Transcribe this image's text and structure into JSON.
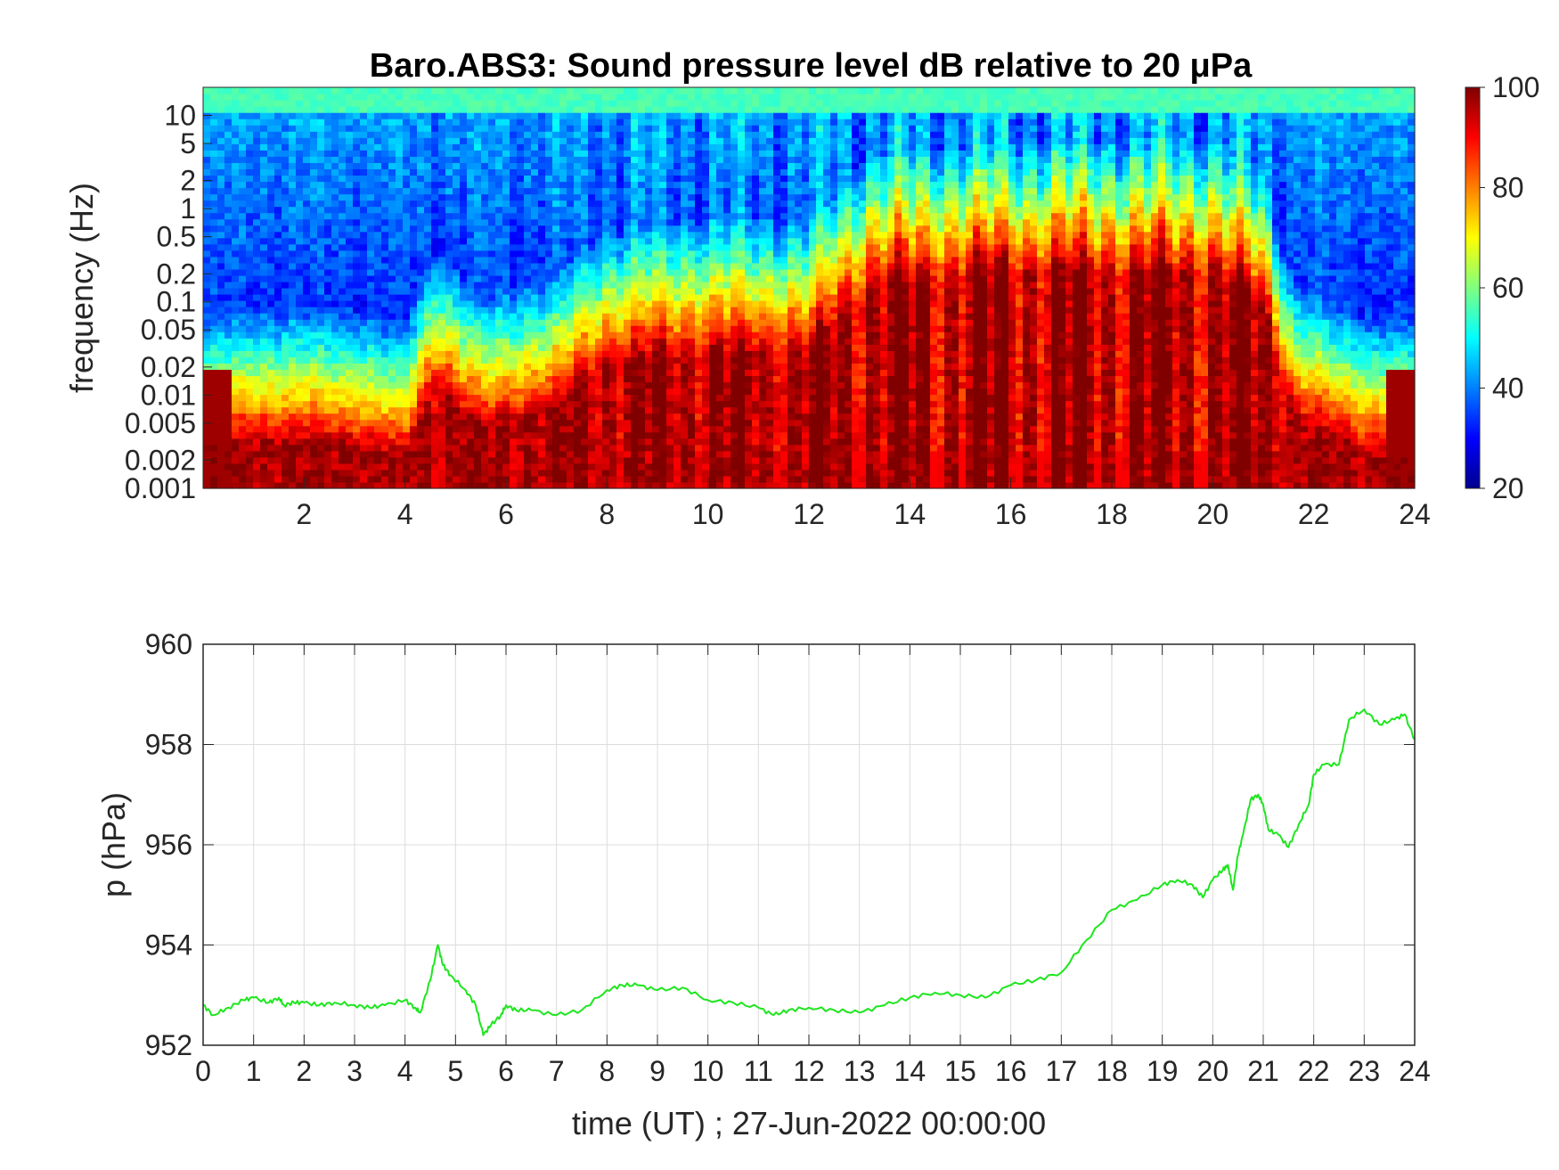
{
  "chart_data": [
    {
      "type": "heatmap",
      "title": "Baro.ABS3: Sound pressure level dB relative to 20 μPa",
      "ylabel": "frequency (Hz)",
      "xlabel": "",
      "xlim": [
        0,
        24
      ],
      "ylim": [
        0.001,
        20
      ],
      "yscale": "log",
      "xticks": [
        "2",
        "4",
        "6",
        "8",
        "10",
        "12",
        "14",
        "16",
        "18",
        "20",
        "22",
        "24"
      ],
      "yticks": [
        "10",
        "5",
        "2",
        "1",
        "0.5",
        "0.2",
        "0.1",
        "0.05",
        "0.02",
        "0.01",
        "0.005",
        "0.002",
        "0.001"
      ],
      "colorbar": {
        "ticks": [
          "100",
          "80",
          "60",
          "40",
          "20"
        ],
        "range": [
          20,
          100
        ],
        "colormap": "jet"
      }
    },
    {
      "type": "line",
      "xlabel": "time (UT) ; 27-Jun-2022 00:00:00",
      "ylabel": "p (hPa)",
      "xlim": [
        0,
        24
      ],
      "ylim": [
        952,
        960
      ],
      "grid": true,
      "xticks": [
        "0",
        "1",
        "2",
        "3",
        "4",
        "5",
        "6",
        "7",
        "8",
        "9",
        "10",
        "11",
        "12",
        "13",
        "14",
        "15",
        "16",
        "17",
        "18",
        "19",
        "20",
        "21",
        "22",
        "23",
        "24"
      ],
      "yticks": [
        "960",
        "958",
        "956",
        "954",
        "952"
      ],
      "series": [
        {
          "color": "#1ee61e",
          "x": [
            0,
            0.2,
            0.5,
            0.8,
            1.0,
            1.3,
            1.5,
            1.6,
            1.8,
            2.0,
            2.3,
            2.6,
            3.0,
            3.3,
            3.6,
            4.0,
            4.2,
            4.3,
            4.5,
            4.65,
            4.75,
            4.9,
            5.2,
            5.4,
            5.55,
            5.7,
            5.9,
            6.0,
            6.2,
            6.5,
            7.0,
            7.5,
            8.0,
            8.3,
            8.6,
            9.0,
            9.5,
            10.0,
            10.5,
            11.0,
            11.3,
            11.6,
            12.0,
            12.5,
            13.0,
            13.5,
            14.0,
            14.5,
            15.0,
            15.5,
            16.0,
            16.5,
            17.0,
            17.5,
            18.0,
            18.5,
            19.0,
            19.3,
            19.6,
            19.8,
            20.0,
            20.2,
            20.3,
            20.4,
            20.5,
            20.6,
            20.75,
            20.9,
            21.0,
            21.1,
            21.3,
            21.5,
            21.7,
            21.9,
            22.0,
            22.2,
            22.5,
            22.7,
            23.0,
            23.3,
            23.6,
            23.8,
            24.0
          ],
          "y": [
            952.8,
            952.6,
            952.75,
            952.9,
            952.95,
            952.85,
            952.95,
            952.8,
            952.85,
            952.85,
            952.8,
            952.85,
            952.8,
            952.75,
            952.8,
            952.9,
            952.75,
            952.65,
            953.3,
            954.0,
            953.6,
            953.4,
            953.1,
            952.8,
            952.2,
            952.4,
            952.6,
            952.8,
            952.7,
            952.7,
            952.6,
            952.7,
            953.1,
            953.2,
            953.2,
            953.1,
            953.15,
            952.9,
            952.85,
            952.75,
            952.6,
            952.7,
            952.75,
            952.7,
            952.65,
            952.8,
            952.95,
            953.05,
            953.0,
            952.95,
            953.2,
            953.3,
            953.45,
            954.1,
            954.7,
            954.9,
            955.2,
            955.3,
            955.2,
            954.95,
            955.3,
            955.5,
            955.6,
            955.1,
            955.8,
            956.2,
            956.9,
            957.0,
            956.8,
            956.3,
            956.2,
            955.95,
            956.4,
            956.8,
            957.4,
            957.6,
            957.6,
            958.5,
            958.7,
            958.4,
            958.5,
            958.6,
            958.1
          ]
        }
      ]
    }
  ]
}
